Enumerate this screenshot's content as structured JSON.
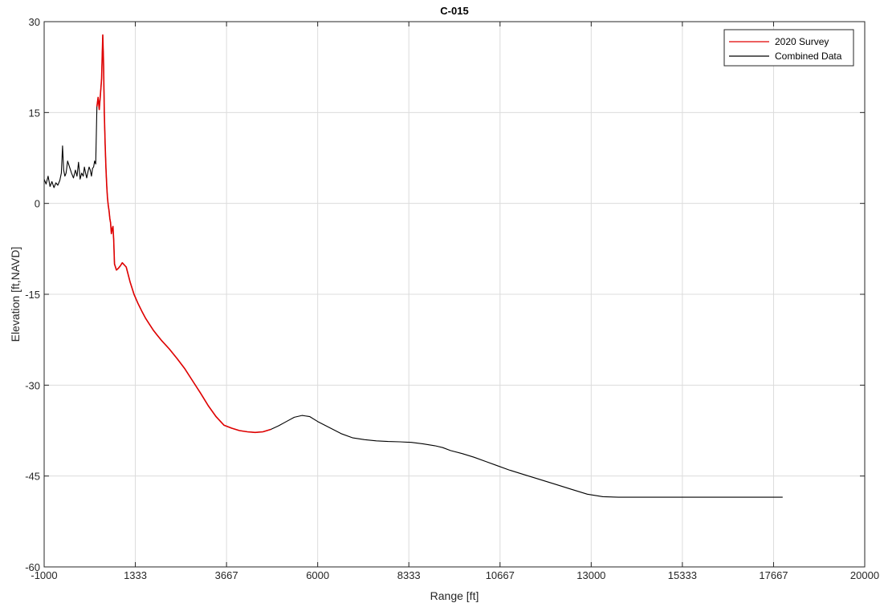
{
  "chart_data": {
    "type": "line",
    "title": "C-015",
    "xlabel": "Range [ft]",
    "ylabel": "Elevation [ft,NAVD]",
    "xlim": [
      -1000,
      20000
    ],
    "ylim": [
      -60,
      30
    ],
    "xticks": [
      -1000,
      1333,
      3667,
      6000,
      8333,
      10667,
      13000,
      15333,
      17667,
      20000
    ],
    "xtick_labels": [
      "-1000",
      "1333",
      "3667",
      "6000",
      "8333",
      "10667",
      "13000",
      "15333",
      "17667",
      "20000"
    ],
    "yticks": [
      -60,
      -45,
      -30,
      -15,
      0,
      15,
      30
    ],
    "ytick_labels": [
      "-60",
      "-45",
      "-30",
      "-15",
      "0",
      "15",
      "30"
    ],
    "grid": true,
    "legend_position": "top-right",
    "series": [
      {
        "name": "Combined Data",
        "color": "#000000",
        "x": [
          -1000,
          -950,
          -900,
          -850,
          -800,
          -750,
          -700,
          -650,
          -600,
          -560,
          -530,
          -500,
          -470,
          -440,
          -400,
          -350,
          -300,
          -250,
          -200,
          -160,
          -120,
          -80,
          -40,
          0,
          30,
          60,
          90,
          120,
          150,
          180,
          210,
          240,
          265,
          290,
          320,
          350,
          380,
          410,
          440,
          470,
          500,
          520,
          540,
          560,
          580,
          600,
          620,
          640,
          660,
          680,
          700,
          720,
          740,
          760,
          780,
          800,
          850,
          900,
          950,
          1000,
          1100,
          1200,
          1300,
          1400,
          1500,
          1600,
          1700,
          1800,
          1900,
          2000,
          2200,
          2400,
          2600,
          2800,
          3000,
          3200,
          3400,
          3600,
          3800,
          4000,
          4200,
          4400,
          4600,
          4800,
          5000,
          5200,
          5400,
          5600,
          5800,
          6000,
          6300,
          6600,
          6900,
          7200,
          7500,
          7800,
          8100,
          8400,
          8700,
          9000,
          9200,
          9400,
          9700,
          10000,
          10300,
          10600,
          10900,
          11300,
          11700,
          12100,
          12500,
          12900,
          13300,
          13700,
          14100,
          14500,
          14900,
          15300,
          15700,
          16100,
          16500,
          16900,
          17300,
          17700,
          17900
        ],
        "values": [
          4.0,
          3.2,
          4.5,
          2.8,
          3.6,
          2.6,
          3.4,
          3.0,
          3.8,
          5.0,
          9.5,
          5.5,
          4.5,
          5.0,
          7.0,
          6.0,
          5.0,
          4.2,
          5.5,
          4.5,
          6.8,
          4.0,
          5.0,
          4.5,
          6.0,
          5.0,
          4.2,
          5.2,
          6.0,
          5.5,
          4.5,
          5.8,
          6.0,
          7.0,
          6.5,
          16.0,
          17.5,
          15.5,
          18.0,
          20.5,
          27.8,
          23.0,
          15.0,
          10.0,
          6.0,
          3.0,
          1.0,
          -0.3,
          -1.2,
          -2.5,
          -3.2,
          -5.0,
          -4.2,
          -3.8,
          -6.0,
          -10.0,
          -11.0,
          -10.7,
          -10.3,
          -9.8,
          -10.5,
          -13.0,
          -15.0,
          -16.5,
          -17.8,
          -19.0,
          -20.0,
          -21.0,
          -21.8,
          -22.6,
          -24.0,
          -25.6,
          -27.3,
          -29.3,
          -31.3,
          -33.4,
          -35.2,
          -36.6,
          -37.1,
          -37.5,
          -37.7,
          -37.8,
          -37.7,
          -37.3,
          -36.7,
          -36.0,
          -35.3,
          -35.0,
          -35.2,
          -36.0,
          -37.0,
          -38.0,
          -38.7,
          -39.0,
          -39.2,
          -39.3,
          -39.35,
          -39.45,
          -39.7,
          -40.0,
          -40.3,
          -40.8,
          -41.3,
          -41.9,
          -42.6,
          -43.3,
          -44.0,
          -44.8,
          -45.6,
          -46.4,
          -47.2,
          -48.0,
          -48.4,
          -48.5,
          -48.5,
          -48.5,
          -48.5,
          -48.5,
          -48.5,
          -48.5,
          -48.5,
          -48.5,
          -48.5,
          -48.5,
          -48.5
        ]
      },
      {
        "name": "2020 Survey",
        "color": "#e00000",
        "x": [
          350,
          380,
          410,
          440,
          470,
          500,
          520,
          540,
          560,
          580,
          600,
          620,
          640,
          660,
          680,
          700,
          720,
          740,
          760,
          780,
          800,
          850,
          900,
          950,
          1000,
          1100,
          1200,
          1300,
          1400,
          1500,
          1600,
          1700,
          1800,
          1900,
          2000,
          2200,
          2400,
          2600,
          2800,
          3000,
          3200,
          3400,
          3600,
          3800,
          4000,
          4200,
          4400,
          4600,
          4800
        ],
        "values": [
          16.0,
          17.5,
          15.5,
          18.0,
          20.5,
          27.8,
          23.0,
          15.0,
          10.0,
          6.0,
          3.0,
          1.0,
          -0.3,
          -1.2,
          -2.5,
          -3.2,
          -5.0,
          -4.2,
          -3.8,
          -6.0,
          -10.0,
          -11.0,
          -10.7,
          -10.3,
          -9.8,
          -10.5,
          -13.0,
          -15.0,
          -16.5,
          -17.8,
          -19.0,
          -20.0,
          -21.0,
          -21.8,
          -22.6,
          -24.0,
          -25.6,
          -27.3,
          -29.3,
          -31.3,
          -33.4,
          -35.2,
          -36.6,
          -37.1,
          -37.5,
          -37.7,
          -37.8,
          -37.7,
          -37.3
        ]
      }
    ]
  }
}
